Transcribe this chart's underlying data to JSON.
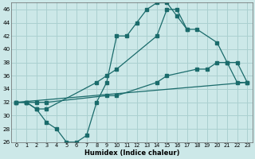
{
  "xlabel": "Humidex (Indice chaleur)",
  "background_color": "#cce8e8",
  "grid_color": "#aad0d0",
  "line_color": "#1a6b6b",
  "xlim": [
    -0.5,
    23.5
  ],
  "ylim": [
    26,
    47
  ],
  "xticks": [
    0,
    1,
    2,
    3,
    4,
    5,
    6,
    7,
    8,
    9,
    10,
    11,
    12,
    13,
    14,
    15,
    16,
    17,
    18,
    19,
    20,
    21,
    22,
    23
  ],
  "yticks": [
    26,
    28,
    30,
    32,
    34,
    36,
    38,
    40,
    42,
    44,
    46
  ],
  "curve1_x": [
    0,
    1,
    2,
    3,
    4,
    5,
    6,
    7,
    8,
    9,
    10,
    11,
    12,
    13,
    14,
    15,
    16,
    17
  ],
  "curve1_y": [
    32,
    32,
    31,
    29,
    28,
    26,
    26,
    27,
    32,
    35,
    42,
    42,
    44,
    46,
    47,
    47,
    45,
    43
  ],
  "curve2_x": [
    0,
    1,
    2,
    3,
    8,
    9,
    10,
    14,
    15,
    16,
    17,
    18,
    20,
    21,
    22,
    23
  ],
  "curve2_y": [
    32,
    32,
    31,
    31,
    35,
    36,
    37,
    42,
    46,
    46,
    43,
    43,
    41,
    38,
    35,
    35
  ],
  "curve3_x": [
    0,
    1,
    2,
    3,
    9,
    10,
    14,
    15,
    18,
    19,
    20,
    21,
    22,
    23
  ],
  "curve3_y": [
    32,
    32,
    32,
    32,
    33,
    33,
    35,
    36,
    37,
    37,
    38,
    38,
    38,
    35
  ],
  "curve4_x": [
    0,
    23
  ],
  "curve4_y": [
    32,
    35
  ]
}
